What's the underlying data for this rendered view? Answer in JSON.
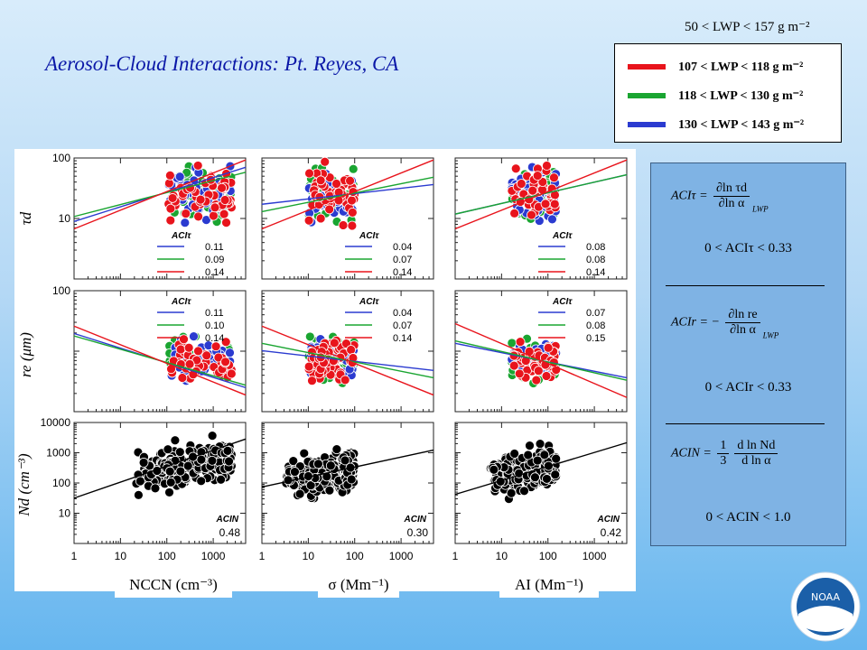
{
  "title": "Aerosol-Cloud Interactions: Pt. Reyes, CA",
  "top_note": "50 < LWP < 157 g m⁻²",
  "legend": [
    {
      "label": "107 < LWP < 118 g m⁻²",
      "color": "#e8141c"
    },
    {
      "label": "118 < LWP < 130 g m⁻²",
      "color": "#1aa531"
    },
    {
      "label": "130 < LWP < 143 g m⁻²",
      "color": "#2b3bd0"
    }
  ],
  "equations": {
    "aci_tau_lhs": "ACIτ =",
    "aci_tau_num": "∂ln τd",
    "aci_tau_den": "∂ln α",
    "aci_tau_sub": "LWP",
    "aci_tau_range": "0 < ACIτ < 0.33",
    "aci_r_lhs": "ACIr = −",
    "aci_r_num": "∂ln re",
    "aci_r_den": "∂ln α",
    "aci_r_sub": "LWP",
    "aci_r_range": "0 < ACIr < 0.33",
    "aci_n_lhs": "ACIN =",
    "aci_n_c_num": "1",
    "aci_n_c_den": "3",
    "aci_n_num": "d ln Nd",
    "aci_n_den": "d ln α",
    "aci_n_range": "0 < ACIN < 1.0"
  },
  "x_labels": [
    "NCCN (cm⁻³)",
    "σ (Mm⁻¹)",
    "AI (Mm⁻¹)"
  ],
  "y_labels": [
    "τd",
    "re (μm)",
    "Nd (cm⁻³)"
  ],
  "logo_text": "NOAA",
  "chart_data": {
    "type": "scatter",
    "x_scale": "log",
    "y_scale": "log",
    "x_ticks": [
      "1",
      "10",
      "100",
      "1000"
    ],
    "columns": [
      "NCCN",
      "σ",
      "AI"
    ],
    "column_xlim": [
      [
        1,
        5000
      ],
      [
        1,
        5000
      ],
      [
        1,
        5000
      ]
    ],
    "column_data_xrange": [
      [
        20,
        2500
      ],
      [
        3,
        100
      ],
      [
        5,
        150
      ]
    ],
    "rows": [
      {
        "variable": "τd",
        "ylim": [
          1,
          100
        ],
        "y_ticks": [
          "10",
          "100"
        ],
        "ycenter": 25
      },
      {
        "variable": "re",
        "ylim": [
          1,
          100
        ],
        "y_ticks": [
          "100"
        ],
        "ycenter": 7
      },
      {
        "variable": "Nd",
        "ylim": [
          1,
          10000
        ],
        "y_ticks": [
          "10",
          "100",
          "1000",
          "10000"
        ],
        "ycenter": 300
      }
    ],
    "legend_label_rows_1_2": "ACIτ",
    "legend_label_row_3": "ACIN",
    "slopes": {
      "row1": [
        {
          "series": [
            "0.11",
            "0.09",
            "0.14"
          ]
        },
        {
          "series": [
            "0.04",
            "0.07",
            "0.14"
          ]
        },
        {
          "series": [
            "0.08",
            "0.08",
            "0.14"
          ]
        }
      ],
      "row2": [
        {
          "series": [
            "0.11",
            "0.10",
            "0.14"
          ]
        },
        {
          "series": [
            "0.04",
            "0.07",
            "0.14"
          ]
        },
        {
          "series": [
            "0.07",
            "0.08",
            "0.15"
          ]
        }
      ],
      "row3": [
        "0.48",
        "0.30",
        "0.42"
      ]
    },
    "series_colors": [
      "#2b3bd0",
      "#1aa531",
      "#e8141c"
    ]
  }
}
